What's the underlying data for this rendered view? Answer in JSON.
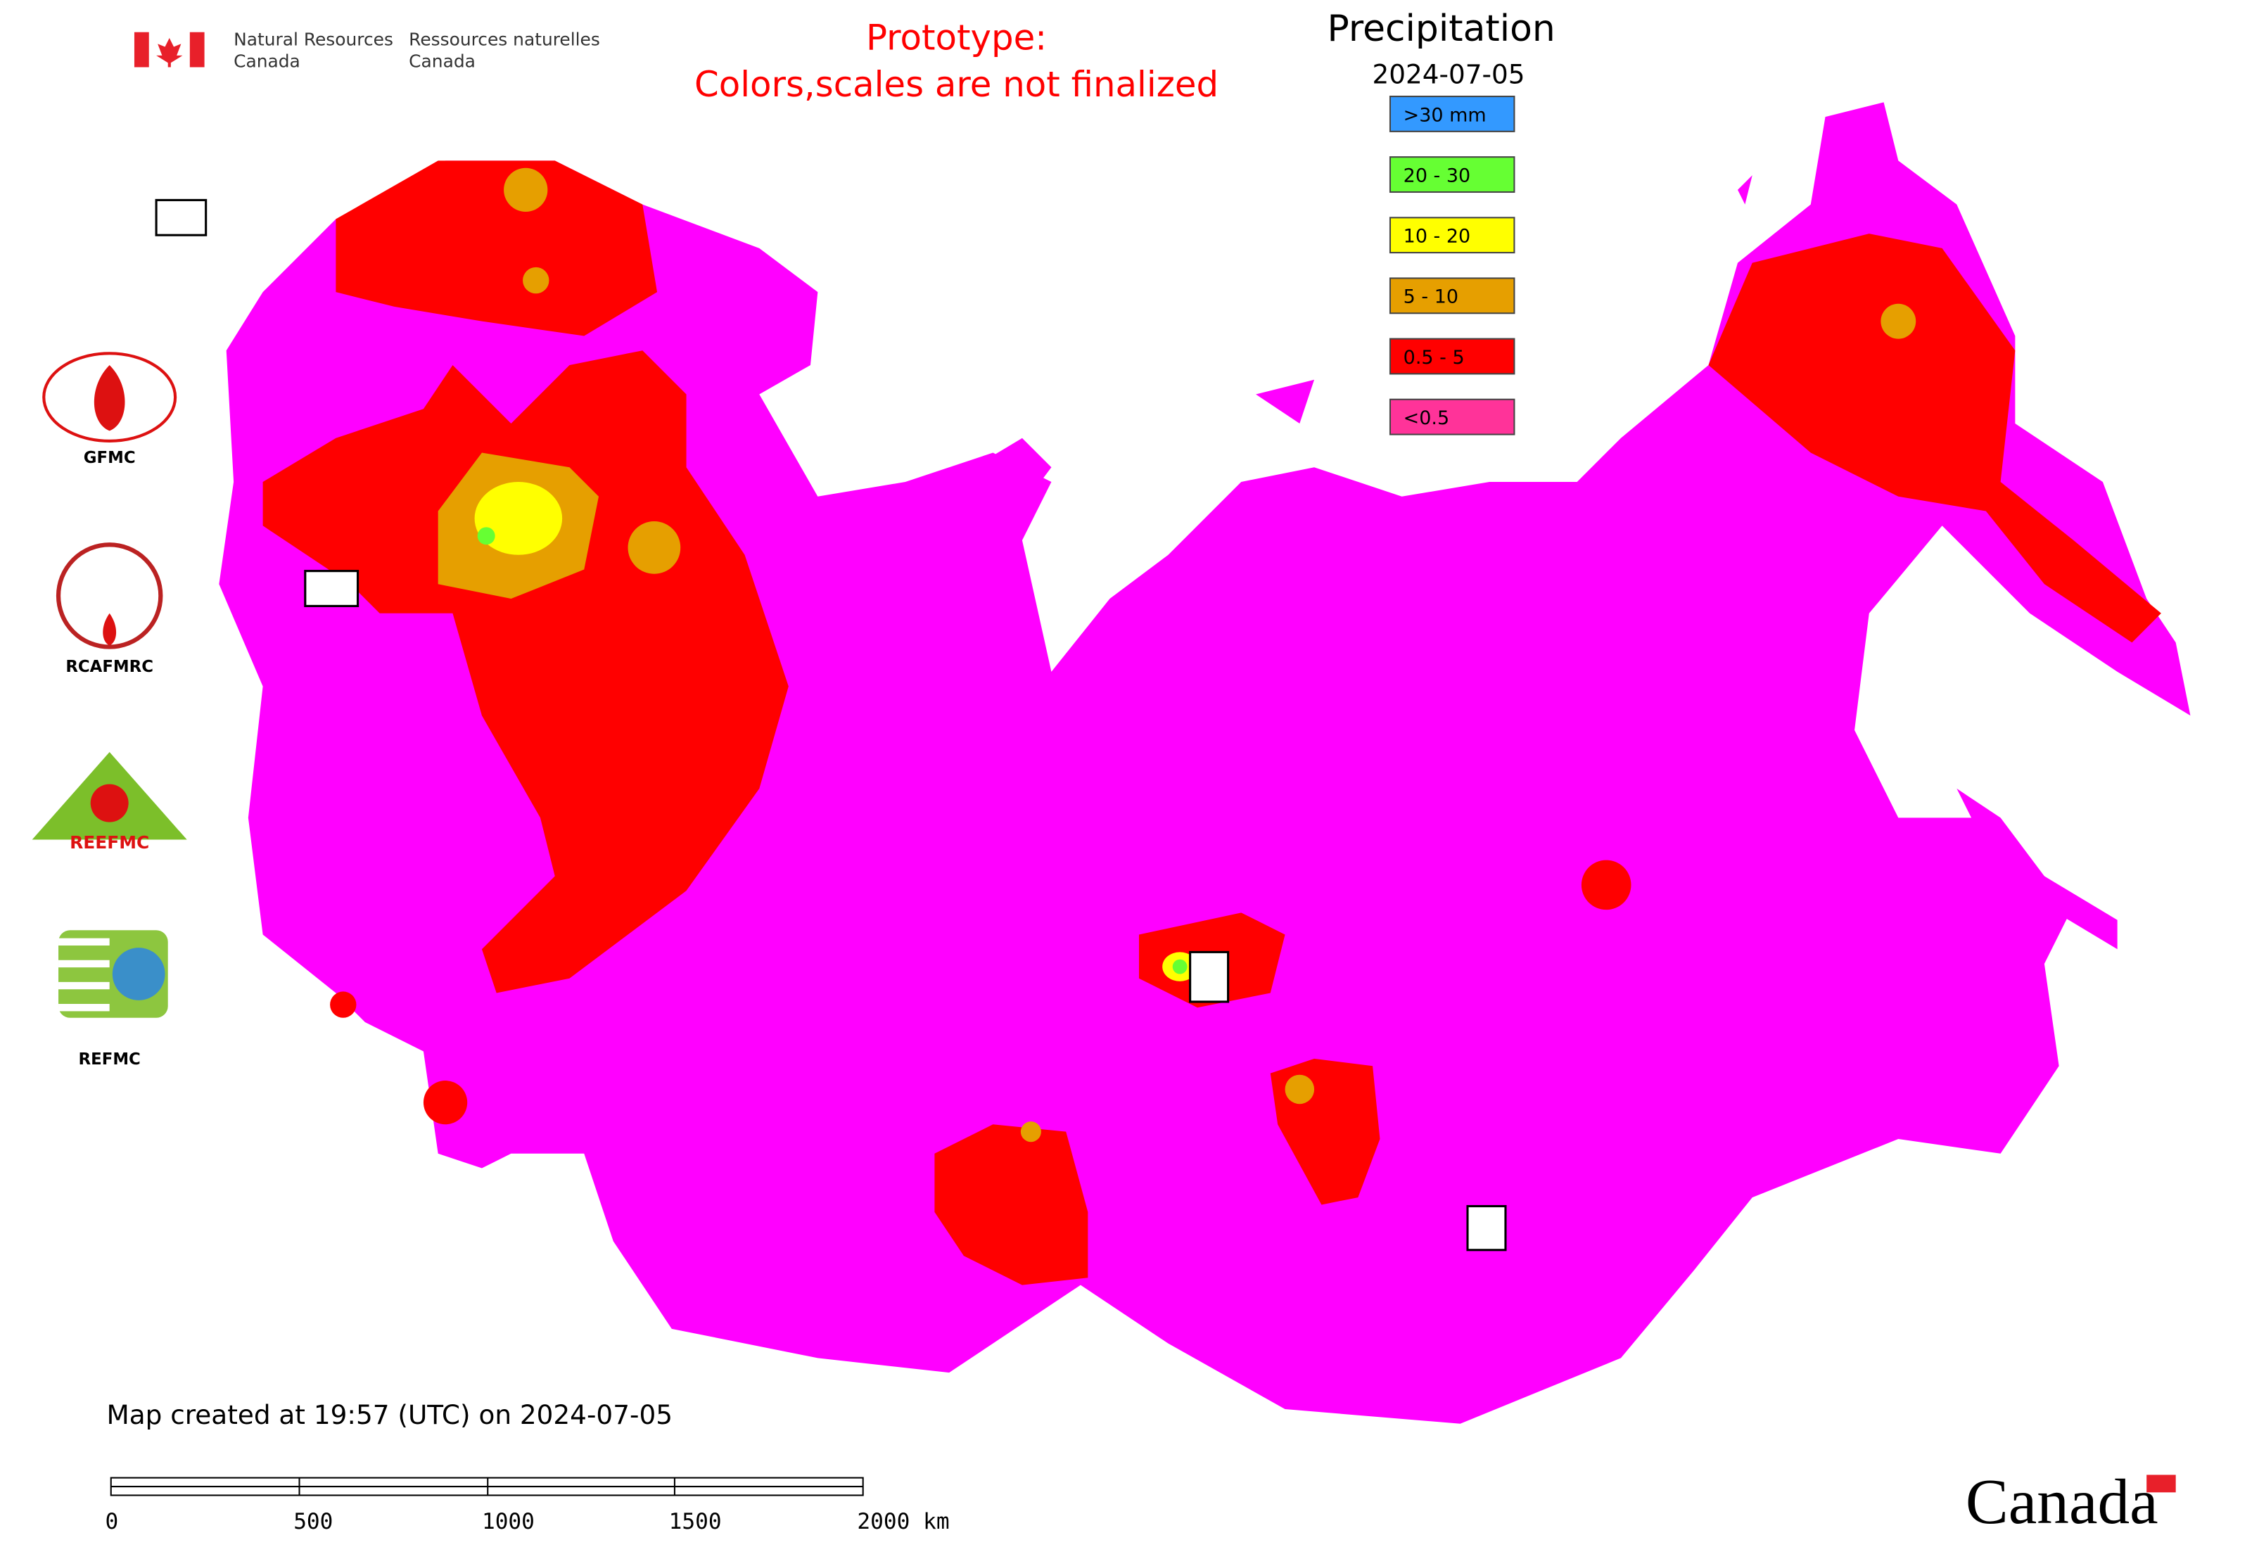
{
  "header": {
    "agency_en": [
      "Natural Resources",
      "Canada"
    ],
    "agency_fr": [
      "Ressources naturelles",
      "Canada"
    ],
    "notice": [
      "Prototype:",
      "Colors,scales are not finalized"
    ]
  },
  "legend": {
    "title": "Precipitation",
    "date": "2024-07-05",
    "items": [
      {
        "label": ">30 mm",
        "color": "#3399ff"
      },
      {
        "label": "20 - 30",
        "color": "#66ff33"
      },
      {
        "label": "10 - 20",
        "color": "#ffff00"
      },
      {
        "label": "5 - 10",
        "color": "#e69f00"
      },
      {
        "label": "0.5 - 5",
        "color": "#ff0000"
      },
      {
        "label": "<0.5",
        "color": "#ff3399"
      }
    ]
  },
  "logos": [
    "GFMC",
    "RCAFMRC",
    "REEFMC",
    "REFMC"
  ],
  "footer": {
    "created": "Map created at 19:57 (UTC) on 2024-07-05",
    "scale": [
      "0",
      "500",
      "1000",
      "1500",
      "2000 km"
    ],
    "wordmark": "Canada"
  }
}
